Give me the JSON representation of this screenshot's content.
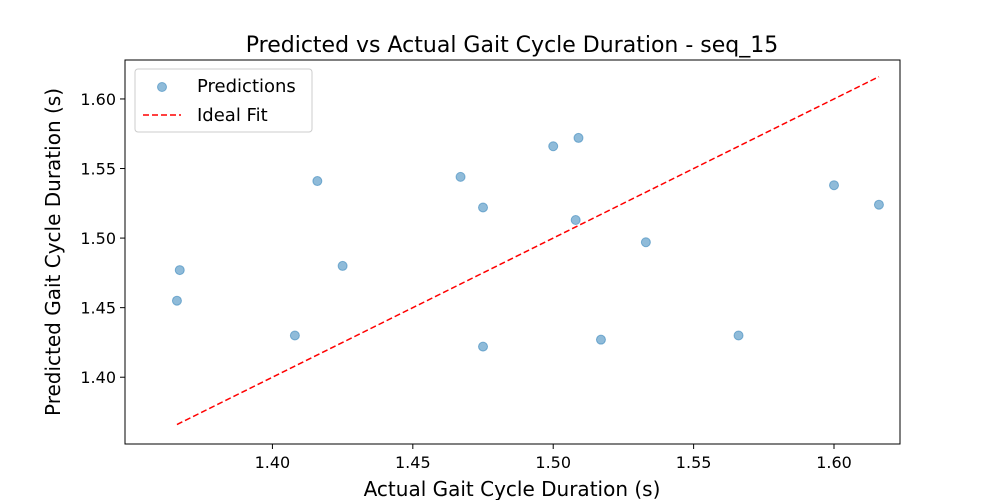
{
  "chart_data": {
    "type": "scatter",
    "title": "Predicted vs Actual Gait Cycle Duration - seq_15",
    "xlabel": "Actual Gait Cycle Duration (s)",
    "ylabel": "Predicted Gait Cycle Duration (s)",
    "xlim": [
      1.3475,
      1.6235
    ],
    "ylim": [
      1.352,
      1.628
    ],
    "xticks": [
      1.4,
      1.45,
      1.5,
      1.55,
      1.6
    ],
    "xtick_labels": [
      "1.40",
      "1.45",
      "1.50",
      "1.55",
      "1.60"
    ],
    "yticks": [
      1.4,
      1.45,
      1.5,
      1.55,
      1.6
    ],
    "ytick_labels": [
      "1.40",
      "1.45",
      "1.50",
      "1.55",
      "1.60"
    ],
    "grid": false,
    "legend_position": "top-left",
    "series": [
      {
        "name": "Predictions",
        "kind": "scatter",
        "color": "#1f77b4",
        "points": [
          {
            "x": 1.366,
            "y": 1.455
          },
          {
            "x": 1.367,
            "y": 1.477
          },
          {
            "x": 1.408,
            "y": 1.43
          },
          {
            "x": 1.416,
            "y": 1.541
          },
          {
            "x": 1.425,
            "y": 1.48
          },
          {
            "x": 1.467,
            "y": 1.544
          },
          {
            "x": 1.475,
            "y": 1.522
          },
          {
            "x": 1.475,
            "y": 1.422
          },
          {
            "x": 1.5,
            "y": 1.566
          },
          {
            "x": 1.508,
            "y": 1.513
          },
          {
            "x": 1.509,
            "y": 1.572
          },
          {
            "x": 1.517,
            "y": 1.427
          },
          {
            "x": 1.533,
            "y": 1.497
          },
          {
            "x": 1.566,
            "y": 1.43
          },
          {
            "x": 1.6,
            "y": 1.538
          },
          {
            "x": 1.616,
            "y": 1.524
          }
        ]
      },
      {
        "name": "Ideal Fit",
        "kind": "line",
        "style": "dashed",
        "color": "#ff0000",
        "points": [
          {
            "x": 1.366,
            "y": 1.366
          },
          {
            "x": 1.616,
            "y": 1.616
          }
        ]
      }
    ]
  }
}
